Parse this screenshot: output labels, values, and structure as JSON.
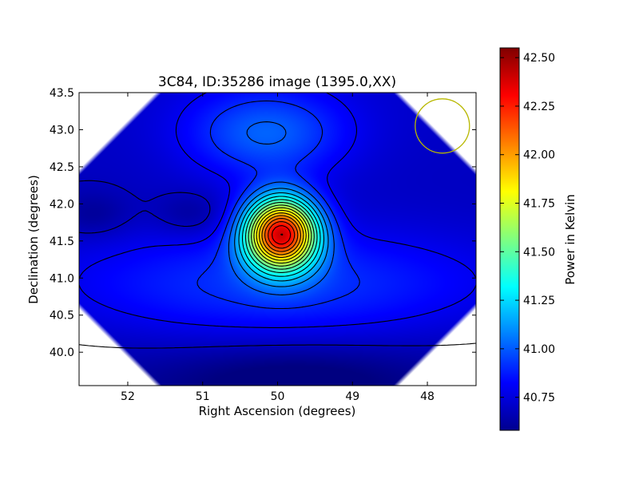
{
  "chart_data": {
    "type": "heatmap",
    "title": "3C84, ID:35286 image (1395.0,XX)",
    "xlabel": "Right Ascension (degrees)",
    "ylabel": "Declination (degrees)",
    "xlim": [
      52.65,
      47.35
    ],
    "ylim": [
      39.55,
      43.5
    ],
    "x_inverted": true,
    "x_ticks": [
      52,
      51,
      50,
      49,
      48
    ],
    "x_tick_labels": [
      "52",
      "51",
      "50",
      "49",
      "48"
    ],
    "y_ticks": [
      40.0,
      40.5,
      41.0,
      41.5,
      42.0,
      42.5,
      43.0,
      43.5
    ],
    "y_tick_labels": [
      "40.0",
      "40.5",
      "41.0",
      "41.5",
      "42.0",
      "42.5",
      "43.0",
      "43.5"
    ],
    "colormap": "jet",
    "colorbar": {
      "label": "Power in Kelvin",
      "range": [
        40.58,
        42.55
      ],
      "ticks": [
        40.75,
        41.0,
        41.25,
        41.5,
        41.75,
        42.0,
        42.25,
        42.5
      ],
      "tick_labels": [
        "40.75",
        "41.00",
        "41.25",
        "41.50",
        "41.75",
        "42.00",
        "42.25",
        "42.50"
      ]
    },
    "peak": {
      "ra": 49.95,
      "dec": 41.6,
      "value": 42.52
    },
    "secondary_peak": {
      "ra": 50.15,
      "dec": 42.95,
      "value": 41.33
    },
    "local_maxima": [
      {
        "ra": 52.45,
        "dec": 41.85,
        "value": 40.75
      },
      {
        "ra": 51.15,
        "dec": 41.85,
        "value": 40.8
      }
    ],
    "beam_circle": {
      "ra": 47.8,
      "dec": 43.05
    }
  },
  "colors": {
    "contour_line": "#000000",
    "beam_circle": "#b8b800",
    "axes": "#000000",
    "background": "#ffffff"
  }
}
